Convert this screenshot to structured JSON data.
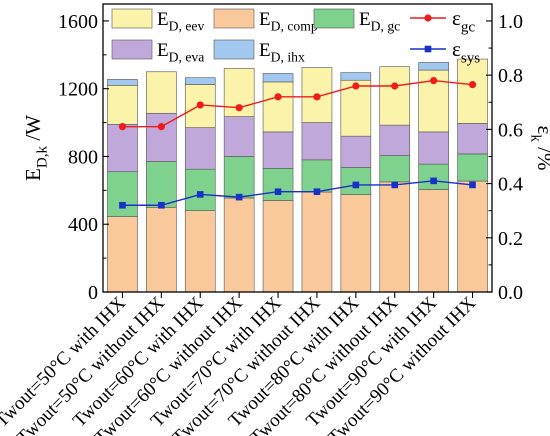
{
  "chart_data": {
    "type": "bar",
    "stacked": true,
    "categories": [
      "Twout=50°C with IHX",
      "Twout=50°C without IHX",
      "Twout=60°C with IHX",
      "Twout=60°C without IHX",
      "Twout=70°C with IHX",
      "Twout=70°C without IHX",
      "Twout=80°C with IHX",
      "Twout=80°C without IHX",
      "Twout=90°C with IHX",
      "Twout=90°C without IHX"
    ],
    "ylabel_left": {
      "main": "E",
      "sub": "D,k",
      "unit": " /W"
    },
    "ylabel_right": {
      "main": "ε",
      "sub": "k",
      "unit": " /%"
    },
    "ylim_left": [
      0,
      1700
    ],
    "ylim_right": [
      0.0,
      1.0625
    ],
    "yticks_left": [
      0,
      400,
      800,
      1200,
      1600
    ],
    "yticks_right": [
      0.0,
      0.2,
      0.4,
      0.6,
      0.8,
      1.0
    ],
    "yticks_right_labels": [
      "0.0",
      "0.2",
      "0.4",
      "0.6",
      "0.8",
      "1.0"
    ],
    "bar_series": [
      {
        "key": "comp",
        "label_main": "E",
        "label_sub": "D, comp",
        "color": "#f9c99c",
        "values": [
          445,
          500,
          480,
          555,
          540,
          590,
          575,
          650,
          605,
          655
        ]
      },
      {
        "key": "gc",
        "label_main": "E",
        "label_sub": "D, gc",
        "color": "#7fd18e",
        "values": [
          265,
          270,
          245,
          245,
          190,
          190,
          160,
          155,
          150,
          160
        ]
      },
      {
        "key": "eva",
        "label_main": "E",
        "label_sub": "D, eva",
        "color": "#c0a9da",
        "values": [
          280,
          285,
          245,
          235,
          215,
          220,
          185,
          180,
          190,
          180
        ]
      },
      {
        "key": "eev",
        "label_main": "E",
        "label_sub": "D, eev",
        "color": "#faf3a9",
        "values": [
          230,
          245,
          255,
          285,
          295,
          325,
          330,
          345,
          365,
          380
        ]
      },
      {
        "key": "ihx",
        "label_main": "E",
        "label_sub": "D, ihx",
        "color": "#a3c8ef",
        "values": [
          35,
          0,
          40,
          0,
          50,
          0,
          45,
          0,
          45,
          0
        ]
      }
    ],
    "line_series": [
      {
        "key": "gc",
        "label_main": "ε",
        "label_sub": "gc",
        "color": "#ee1c1c",
        "marker": "circle",
        "values": [
          0.61,
          0.61,
          0.69,
          0.68,
          0.72,
          0.72,
          0.76,
          0.76,
          0.78,
          0.765
        ]
      },
      {
        "key": "sys",
        "label_main": "ε",
        "label_sub": "sys",
        "color": "#1832c8",
        "marker": "square",
        "values": [
          0.32,
          0.32,
          0.36,
          0.35,
          0.37,
          0.37,
          0.395,
          0.395,
          0.41,
          0.395
        ]
      }
    ],
    "legend_order": [
      "eev",
      "comp",
      "gc",
      "line:gc",
      "eva",
      "ihx",
      "line:sys"
    ],
    "legend": "top, inside plot",
    "grid": false
  }
}
